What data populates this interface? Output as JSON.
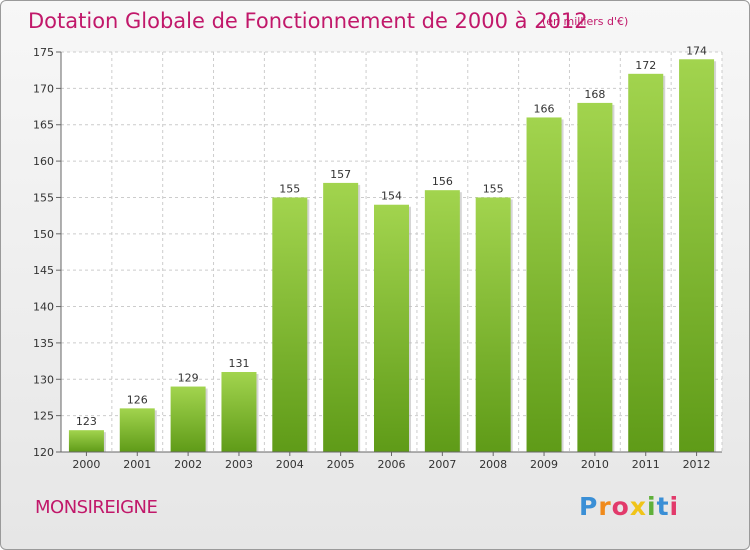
{
  "chart_data": {
    "type": "bar",
    "title": "Dotation Globale de Fonctionnement de 2000 à 2012",
    "subtitle": "(en milliers d'€)",
    "categories": [
      "2000",
      "2001",
      "2002",
      "2003",
      "2004",
      "2005",
      "2006",
      "2007",
      "2008",
      "2009",
      "2010",
      "2011",
      "2012"
    ],
    "values": [
      123,
      126,
      129,
      131,
      155,
      157,
      154,
      156,
      155,
      166,
      168,
      172,
      174
    ],
    "ylim": [
      120,
      175
    ],
    "yticks": [
      120,
      125,
      130,
      135,
      140,
      145,
      150,
      155,
      160,
      165,
      170,
      175
    ],
    "grid": true,
    "bar_color": "#7dbb2e"
  },
  "footer": {
    "commune": "MONSIREIGNE",
    "logo_text": "Proxiti"
  }
}
